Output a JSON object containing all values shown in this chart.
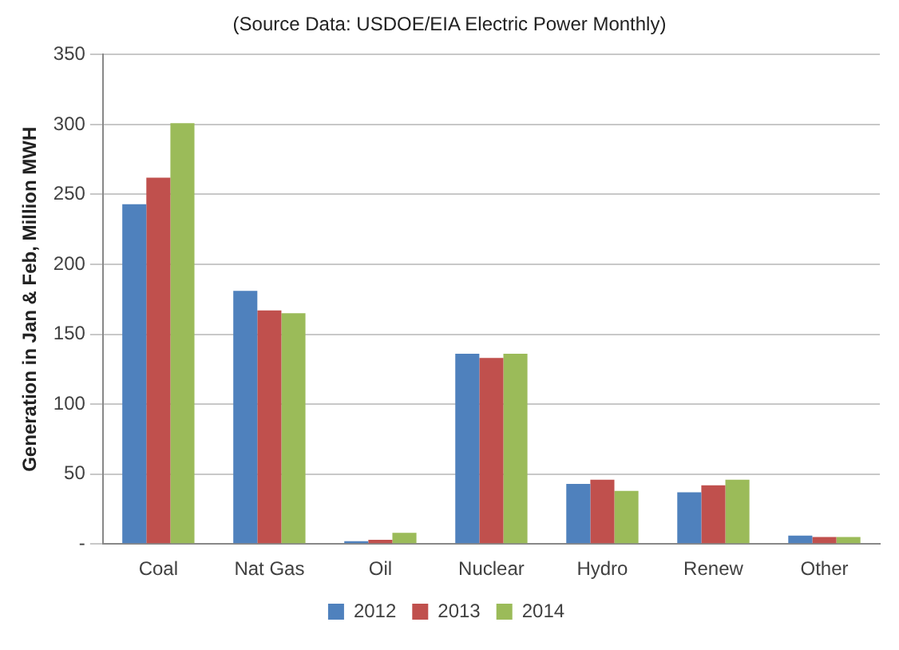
{
  "chart_data": {
    "type": "bar",
    "ylabel": "Generation in Jan & Feb, Million MWH",
    "annotations": [
      "(Source Data: USDOE/EIA Electric Power Monthly)"
    ],
    "categories": [
      "Coal",
      "Nat Gas",
      "Oil",
      "Nuclear",
      "Hydro",
      "Renew",
      "Other"
    ],
    "series": [
      {
        "name": "2012",
        "color": "#4f81bd",
        "values": [
          243,
          181,
          2,
          136,
          43,
          37,
          6
        ]
      },
      {
        "name": "2013",
        "color": "#c0504d",
        "values": [
          262,
          167,
          3,
          133,
          46,
          42,
          5
        ]
      },
      {
        "name": "2014",
        "color": "#9bbb59",
        "values": [
          301,
          165,
          8,
          136,
          38,
          46,
          5
        ]
      }
    ],
    "ylim": [
      0,
      350
    ],
    "yticks": [
      {
        "value": 0,
        "label": "-"
      },
      50,
      100,
      150,
      200,
      250,
      300,
      350
    ],
    "grid": "y",
    "legend": "bottom"
  }
}
